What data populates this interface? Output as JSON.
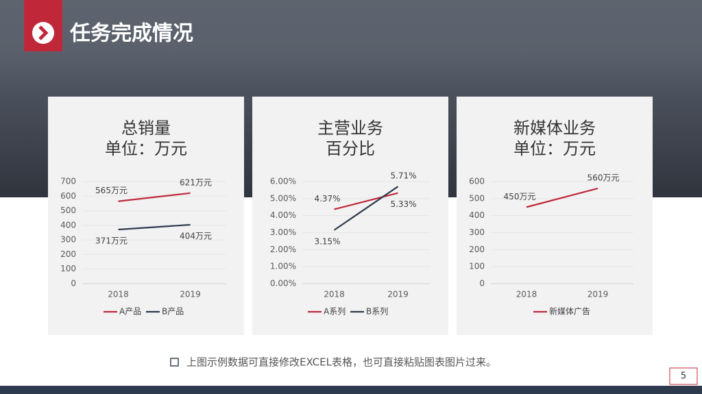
{
  "header": {
    "title": "任务完成情况"
  },
  "chart_data": [
    {
      "type": "line",
      "title": "总销量",
      "subtitle": "单位：万元",
      "categories": [
        "2018",
        "2019"
      ],
      "series": [
        {
          "name": "A产品",
          "color": "#c0283a",
          "values": [
            565,
            621
          ],
          "value_labels": [
            "565万元",
            "621万元"
          ]
        },
        {
          "name": "B产品",
          "color": "#2e3a4d",
          "values": [
            371,
            404
          ],
          "value_labels": [
            "371万元",
            "404万元"
          ]
        }
      ],
      "ylim": [
        0,
        700
      ],
      "yticks": [
        0,
        100,
        200,
        300,
        400,
        500,
        600,
        700
      ],
      "grid": true,
      "legend": "bottom"
    },
    {
      "type": "line",
      "title": "主营业务",
      "subtitle": "百分比",
      "categories": [
        "2018",
        "2019"
      ],
      "series": [
        {
          "name": "A系列",
          "color": "#c0283a",
          "values": [
            4.37,
            5.33
          ],
          "value_labels": [
            "4.37%",
            "5.33%"
          ]
        },
        {
          "name": "B系列",
          "color": "#2e3a4d",
          "values": [
            3.15,
            5.71
          ],
          "value_labels": [
            "3.15%",
            "5.71%"
          ]
        }
      ],
      "ylim": [
        0,
        6
      ],
      "yticks": [
        {
          "value": 0,
          "label": "0.00%"
        },
        {
          "value": 1,
          "label": "1.00%"
        },
        {
          "value": 2,
          "label": "2.00%"
        },
        {
          "value": 3,
          "label": "3.00%"
        },
        {
          "value": 4,
          "label": "4.00%"
        },
        {
          "value": 5,
          "label": "5.00%"
        },
        {
          "value": 6,
          "label": "6.00%"
        }
      ],
      "grid": true,
      "legend": "bottom"
    },
    {
      "type": "line",
      "title": "新媒体业务",
      "subtitle": "单位：万元",
      "categories": [
        "2018",
        "2019"
      ],
      "series": [
        {
          "name": "新媒体广告",
          "color": "#c0283a",
          "values": [
            450,
            560
          ],
          "value_labels": [
            "450万元",
            "560万元"
          ]
        }
      ],
      "ylim": [
        0,
        600
      ],
      "yticks": [
        0,
        100,
        200,
        300,
        400,
        500,
        600
      ],
      "grid": true,
      "legend": "bottom"
    }
  ],
  "footer": {
    "note": "上图示例数据可直接修改EXCEL表格，也可直接粘贴图表图片过来。",
    "page": 5
  }
}
